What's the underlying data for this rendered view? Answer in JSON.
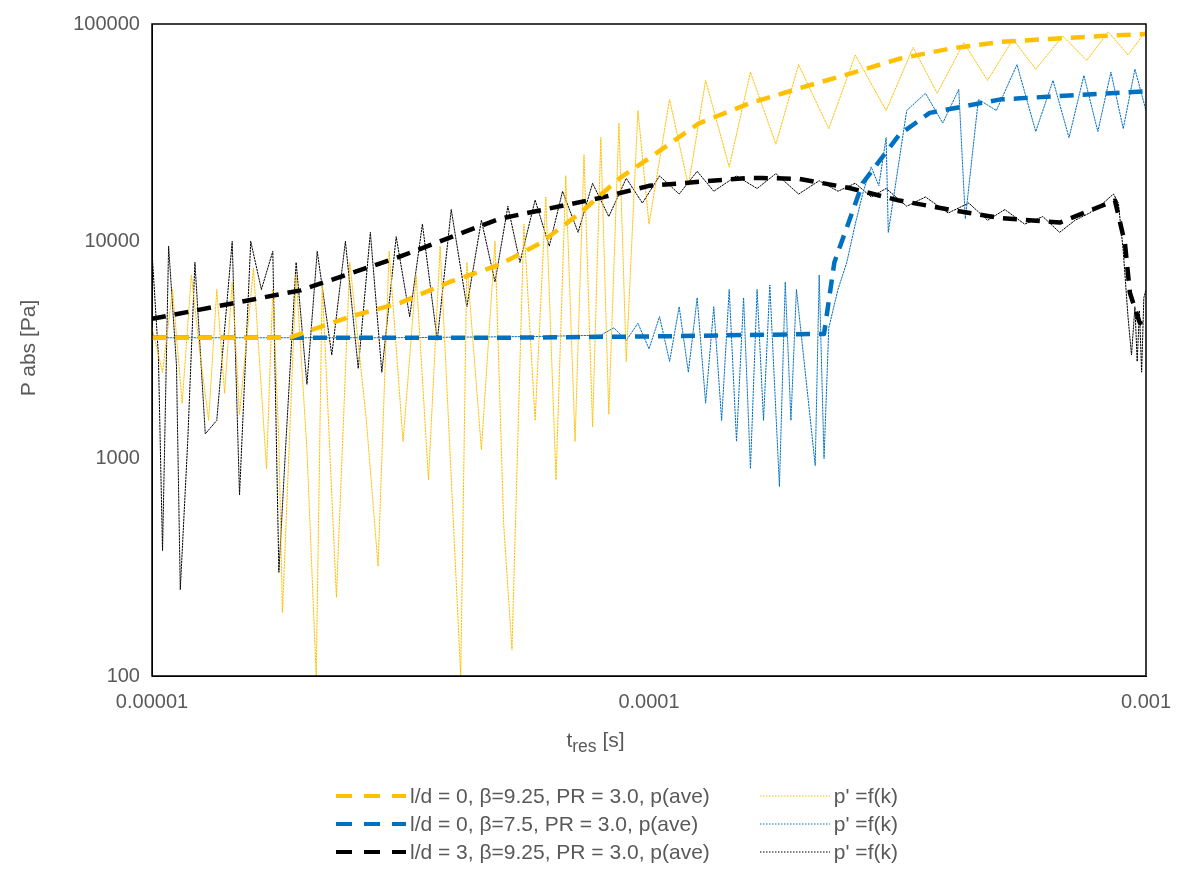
{
  "chart_data": {
    "type": "line",
    "xlabel": "t$_{res}$ [s]",
    "ylabel": "P abs [Pa]",
    "log": "xy",
    "grid": false,
    "legend": "bottom",
    "marker": "none",
    "xlim": [
      1e-05,
      0.001
    ],
    "xticks": [
      {
        "value": 1e-05,
        "label": "0.00001"
      },
      {
        "value": 0.0001,
        "label": "0.0001"
      },
      {
        "value": 0.001,
        "label": "0.001"
      }
    ],
    "ylim": [
      100,
      100000
    ],
    "yticks": [
      100,
      1000,
      10000,
      100000
    ],
    "series": [
      {
        "name": "l/d = 0, β=9.25, PR = 3.0, p(ave)",
        "color": "#ffc000",
        "line_style": "dashed",
        "x": [
          1e-05,
          1.89e-05,
          2.5e-05,
          3.15e-05,
          3.97e-05,
          5e-05,
          6.04e-05,
          7.27e-05,
          8.75e-05,
          0.0001,
          0.000126,
          0.000159,
          0.0002,
          0.000253,
          0.000319,
          0.000402,
          0.00051,
          0.00064,
          0.00081,
          0.001
        ],
        "values": [
          3600,
          3600,
          4500,
          5200,
          6500,
          7800,
          9800,
          13500,
          19600,
          24100,
          34900,
          43100,
          50500,
          59000,
          69200,
          76900,
          82700,
          85400,
          88000,
          90000
        ]
      },
      {
        "name": "l/d = 0, β=7.5, PR = 3.0, p(ave)",
        "color": "#0070c0",
        "line_style": "dashed",
        "x": [
          1e-05,
          5e-05,
          0.0001,
          0.000225,
          0.000236,
          0.000269,
          0.000319,
          0.000367,
          0.00051,
          0.001
        ],
        "values": [
          3600,
          3600,
          3650,
          3750,
          8000,
          18500,
          31000,
          39000,
          45000,
          49000
        ]
      },
      {
        "name": "l/d = 3, β=9.25, PR = 3.0, p(ave)",
        "color": "#000000",
        "line_style": "dashed",
        "x": [
          1e-05,
          1.99e-05,
          3.15e-05,
          5e-05,
          7.94e-05,
          0.0001,
          0.000159,
          0.0002,
          0.000253,
          0.000319,
          0.000402,
          0.00051,
          0.000671,
          0.00081,
          0.000866,
          0.000907,
          0.000928,
          0.00097,
          0.001
        ],
        "values": [
          4400,
          5950,
          8500,
          12700,
          15800,
          18000,
          19600,
          19400,
          17600,
          15400,
          14000,
          12800,
          12200,
          14500,
          15400,
          9800,
          5800,
          4250,
          4000
        ]
      },
      {
        "name": "p' =f(k)",
        "color": "#ffc000",
        "line_style": "dotted",
        "x": [
          1e-05,
          1.05e-05,
          1.1e-05,
          1.15e-05,
          1.2e-05,
          1.25e-05,
          1.3e-05,
          1.35e-05,
          1.4e-05,
          1.45e-05,
          1.5e-05,
          1.6e-05,
          1.7e-05,
          1.75e-05,
          1.8e-05,
          1.83e-05,
          1.95e-05,
          2.05e-05,
          2.14e-05,
          2.2e-05,
          2.35e-05,
          2.5e-05,
          2.7e-05,
          2.85e-05,
          3e-05,
          3.2e-05,
          3.4e-05,
          3.6e-05,
          3.8e-05,
          4.18e-05,
          4.3e-05,
          4.6e-05,
          4.9e-05,
          5.1e-05,
          5.3e-05,
          5.6e-05,
          5.9e-05,
          6.2e-05,
          6.5e-05,
          6.8e-05,
          7.1e-05,
          7.4e-05,
          7.7e-05,
          8e-05,
          8.3e-05,
          8.7e-05,
          9e-05,
          9.5e-05,
          0.0001,
          0.00011,
          0.00012,
          0.00013,
          0.000145,
          0.00016,
          0.00018,
          0.0002,
          0.00023,
          0.00026,
          0.0003,
          0.00034,
          0.00038,
          0.00043,
          0.00048,
          0.00054,
          0.0006,
          0.00068,
          0.00076,
          0.00084,
          0.00092,
          0.001
        ],
        "values": [
          4000,
          2500,
          6000,
          1800,
          7000,
          3000,
          1500,
          6000,
          2000,
          6500,
          1600,
          7500,
          900,
          6000,
          1200,
          196,
          7000,
          1100,
          100,
          6500,
          230,
          8000,
          1500,
          320,
          9000,
          1200,
          7000,
          800,
          9500,
          100,
          8000,
          1100,
          10000,
          500,
          132,
          12000,
          1500,
          16000,
          800,
          20000,
          1200,
          25000,
          1400,
          30000,
          1600,
          35000,
          2800,
          40000,
          12000,
          45000,
          18000,
          55000,
          22000,
          60000,
          28000,
          65000,
          33000,
          72000,
          40000,
          78000,
          48000,
          82000,
          55000,
          85000,
          62000,
          88000,
          68000,
          92000,
          72000,
          93000
        ]
      },
      {
        "name": "p' =f(k)",
        "color": "#0070c0",
        "line_style": "dotted",
        "x": [
          1e-05,
          3e-05,
          6e-05,
          8e-05,
          8.5e-05,
          9e-05,
          9.5e-05,
          0.0001,
          0.000105,
          0.00011,
          0.000115,
          0.00012,
          0.000125,
          0.00013,
          0.000135,
          0.00014,
          0.000145,
          0.00015,
          0.000155,
          0.00016,
          0.000165,
          0.00017,
          0.000175,
          0.000183,
          0.000188,
          0.000193,
          0.000198,
          0.000216,
          0.00022,
          0.000225,
          0.00023,
          0.00024,
          0.00025,
          0.00026,
          0.00027,
          0.00028,
          0.00029,
          0.0003,
          0.000303,
          0.00033,
          0.00036,
          0.00039,
          0.00042,
          0.000433,
          0.00046,
          0.0005,
          0.00055,
          0.0006,
          0.00065,
          0.0007,
          0.00075,
          0.0008,
          0.00085,
          0.0009,
          0.00095,
          0.001
        ],
        "values": [
          3600,
          3600,
          3650,
          3700,
          4000,
          3500,
          4200,
          3200,
          4500,
          2800,
          5000,
          2500,
          5500,
          1800,
          5000,
          1500,
          6000,
          1200,
          5500,
          900,
          6000,
          1500,
          6300,
          745,
          6500,
          1500,
          6000,
          930,
          7000,
          1000,
          4000,
          6000,
          8000,
          12000,
          17000,
          22000,
          18000,
          30000,
          11000,
          40000,
          48000,
          35000,
          50000,
          12700,
          45000,
          40000,
          65000,
          32000,
          55000,
          30000,
          58000,
          32000,
          60000,
          33000,
          62000,
          40000
        ]
      },
      {
        "name": "p' =f(k)",
        "color": "#000000",
        "line_style": "dotted",
        "x": [
          1e-05,
          1.03e-05,
          1.05e-05,
          1.08e-05,
          1.12e-05,
          1.14e-05,
          1.18e-05,
          1.22e-05,
          1.28e-05,
          1.35e-05,
          1.45e-05,
          1.5e-05,
          1.58e-05,
          1.66e-05,
          1.75e-05,
          1.8e-05,
          1.86e-05,
          1.95e-05,
          2.05e-05,
          2.15e-05,
          2.3e-05,
          2.45e-05,
          2.6e-05,
          2.75e-05,
          2.9e-05,
          3.1e-05,
          3.3e-05,
          3.5e-05,
          3.75e-05,
          4e-05,
          4.3e-05,
          4.6e-05,
          4.9e-05,
          5.2e-05,
          5.5e-05,
          5.9e-05,
          6.3e-05,
          6.7e-05,
          7.2e-05,
          7.7e-05,
          8.3e-05,
          9e-05,
          9.7e-05,
          0.000105,
          0.000115,
          0.000125,
          0.000135,
          0.00015,
          0.000165,
          0.00018,
          0.0002,
          0.00022,
          0.00024,
          0.00026,
          0.00028,
          0.0003,
          0.00033,
          0.00036,
          0.0004,
          0.00044,
          0.00048,
          0.00052,
          0.00057,
          0.00062,
          0.00067,
          0.00072,
          0.00077,
          0.00082,
          0.00086,
          0.00088,
          0.0009,
          0.00092,
          0.000935,
          0.00095,
          0.00096,
          0.00097,
          0.00098,
          0.00099,
          0.001
        ],
        "values": [
          9000,
          3000,
          377,
          9500,
          2700,
          250,
          1200,
          8000,
          1300,
          1500,
          10000,
          680,
          10000,
          6000,
          9000,
          300,
          1200,
          8000,
          2200,
          9000,
          3000,
          10000,
          2600,
          11000,
          2500,
          10500,
          4500,
          12000,
          3500,
          14000,
          5000,
          12500,
          6500,
          14500,
          8000,
          15500,
          9500,
          17000,
          11000,
          18500,
          13000,
          19500,
          15000,
          20000,
          16500,
          21000,
          17000,
          20000,
          17500,
          20500,
          16500,
          19000,
          17000,
          18500,
          16000,
          17500,
          14500,
          16000,
          13500,
          15000,
          12500,
          14000,
          12000,
          13000,
          11000,
          12500,
          13500,
          15000,
          16500,
          15000,
          9000,
          4500,
          3000,
          5000,
          2800,
          4800,
          2500,
          5500,
          6000
        ]
      }
    ]
  }
}
